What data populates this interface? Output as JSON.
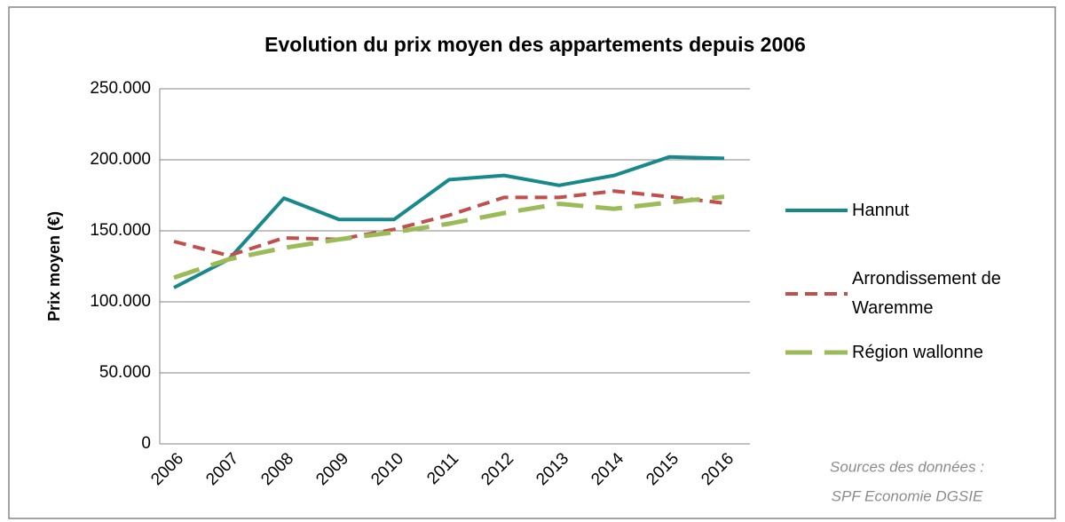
{
  "chart_data": {
    "type": "line",
    "title": "Evolution du prix moyen des appartements depuis 2006",
    "y_label": "Prix moyen (€)",
    "categories": [
      "2006",
      "2007",
      "2008",
      "2009",
      "2010",
      "2011",
      "2012",
      "2013",
      "2014",
      "2015",
      "2016"
    ],
    "series": [
      {
        "name": "Hannut",
        "color": "#17898b",
        "dash": "solid",
        "values": [
          110000,
          130000,
          173000,
          158000,
          158000,
          186000,
          189000,
          182000,
          189000,
          202000,
          201000
        ]
      },
      {
        "name": "Arrondissement de Waremme",
        "color": "#c0504d",
        "dash": "dashed",
        "values": [
          142500,
          132500,
          145000,
          144000,
          151000,
          161000,
          173500,
          173500,
          178000,
          174000,
          169500
        ]
      },
      {
        "name": "Région wallonne",
        "color": "#9bbb59",
        "dash": "longdash",
        "values": [
          117000,
          130000,
          138000,
          144000,
          149000,
          155000,
          162500,
          169000,
          165500,
          170000,
          174000
        ]
      }
    ],
    "ylim": [
      0,
      250000
    ],
    "yticks": [
      0,
      {
        "value": 50000,
        "label": "50.000"
      },
      {
        "value": 100000,
        "label": "100.000"
      },
      {
        "value": 150000,
        "label": "150.000"
      },
      {
        "value": 200000,
        "label": "200.000"
      },
      {
        "value": 250000,
        "label": "250.000"
      }
    ],
    "grid": true,
    "legend": "right",
    "source": [
      "Sources des données :",
      "SPF Economie DGSIE"
    ]
  }
}
